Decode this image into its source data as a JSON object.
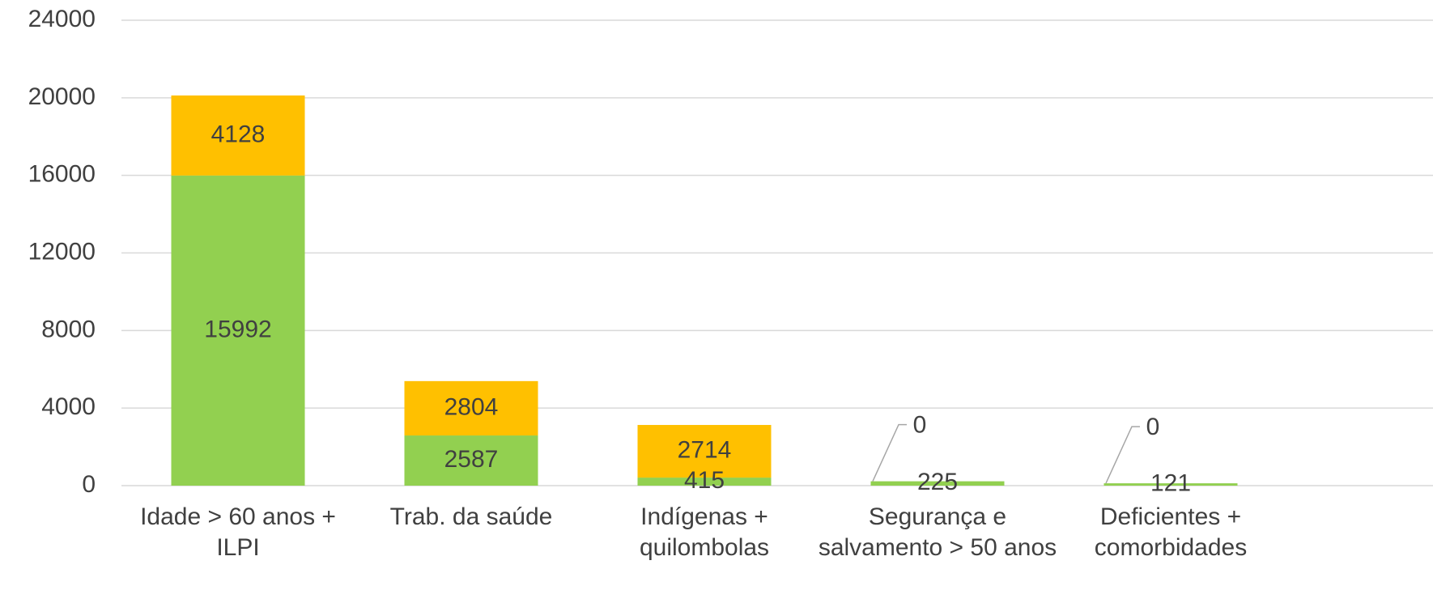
{
  "chart_data": {
    "type": "stacked_bar",
    "categories": [
      "Idade > 60 anos + ILPI",
      "Trab. da saúde",
      "Indígenas + quilombolas",
      "Segurança e salvamento > 50 anos",
      "Deficientes + comorbidades"
    ],
    "series": [
      {
        "color": "#92d050",
        "values": [
          15992,
          2587,
          415,
          225,
          121
        ]
      },
      {
        "color": "#ffc000",
        "values": [
          4128,
          2804,
          2714,
          0,
          0
        ]
      }
    ],
    "ylim": [
      0,
      24000
    ],
    "yticks": [
      0,
      4000,
      8000,
      12000,
      16000,
      20000,
      24000
    ],
    "grid": true
  }
}
